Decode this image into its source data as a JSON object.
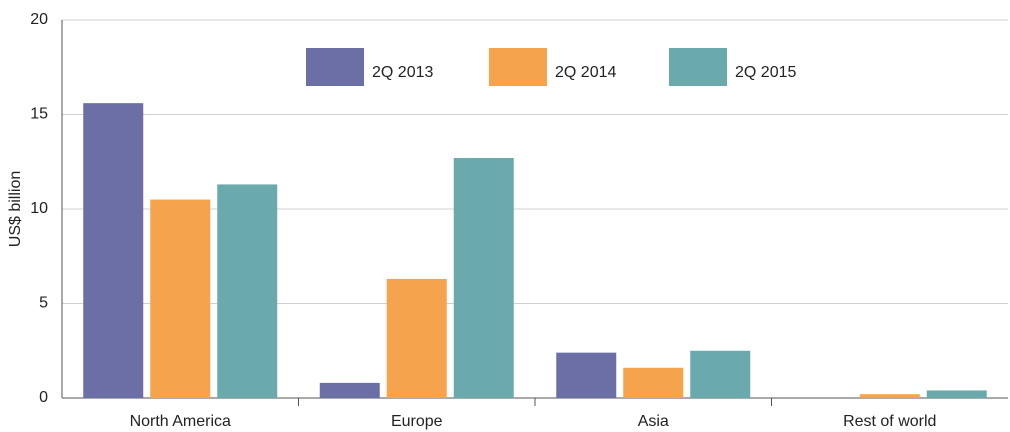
{
  "chart_data": {
    "type": "bar",
    "y_label": "US$ billion",
    "categories": [
      "North America",
      "Europe",
      "Asia",
      "Rest of world"
    ],
    "series": [
      {
        "name": "2Q 2013",
        "color": "#6b6fa5",
        "values": [
          15.6,
          0.8,
          2.4,
          0
        ]
      },
      {
        "name": "2Q 2014",
        "color": "#f5a34c",
        "values": [
          10.5,
          6.3,
          1.6,
          0.2
        ]
      },
      {
        "name": "2Q 2015",
        "color": "#6aaaac",
        "values": [
          11.3,
          12.7,
          2.5,
          0.4
        ]
      }
    ],
    "ylim": [
      0,
      20
    ],
    "yticks": [
      0,
      5,
      10,
      15,
      20
    ],
    "grid": true,
    "legend": "top"
  }
}
